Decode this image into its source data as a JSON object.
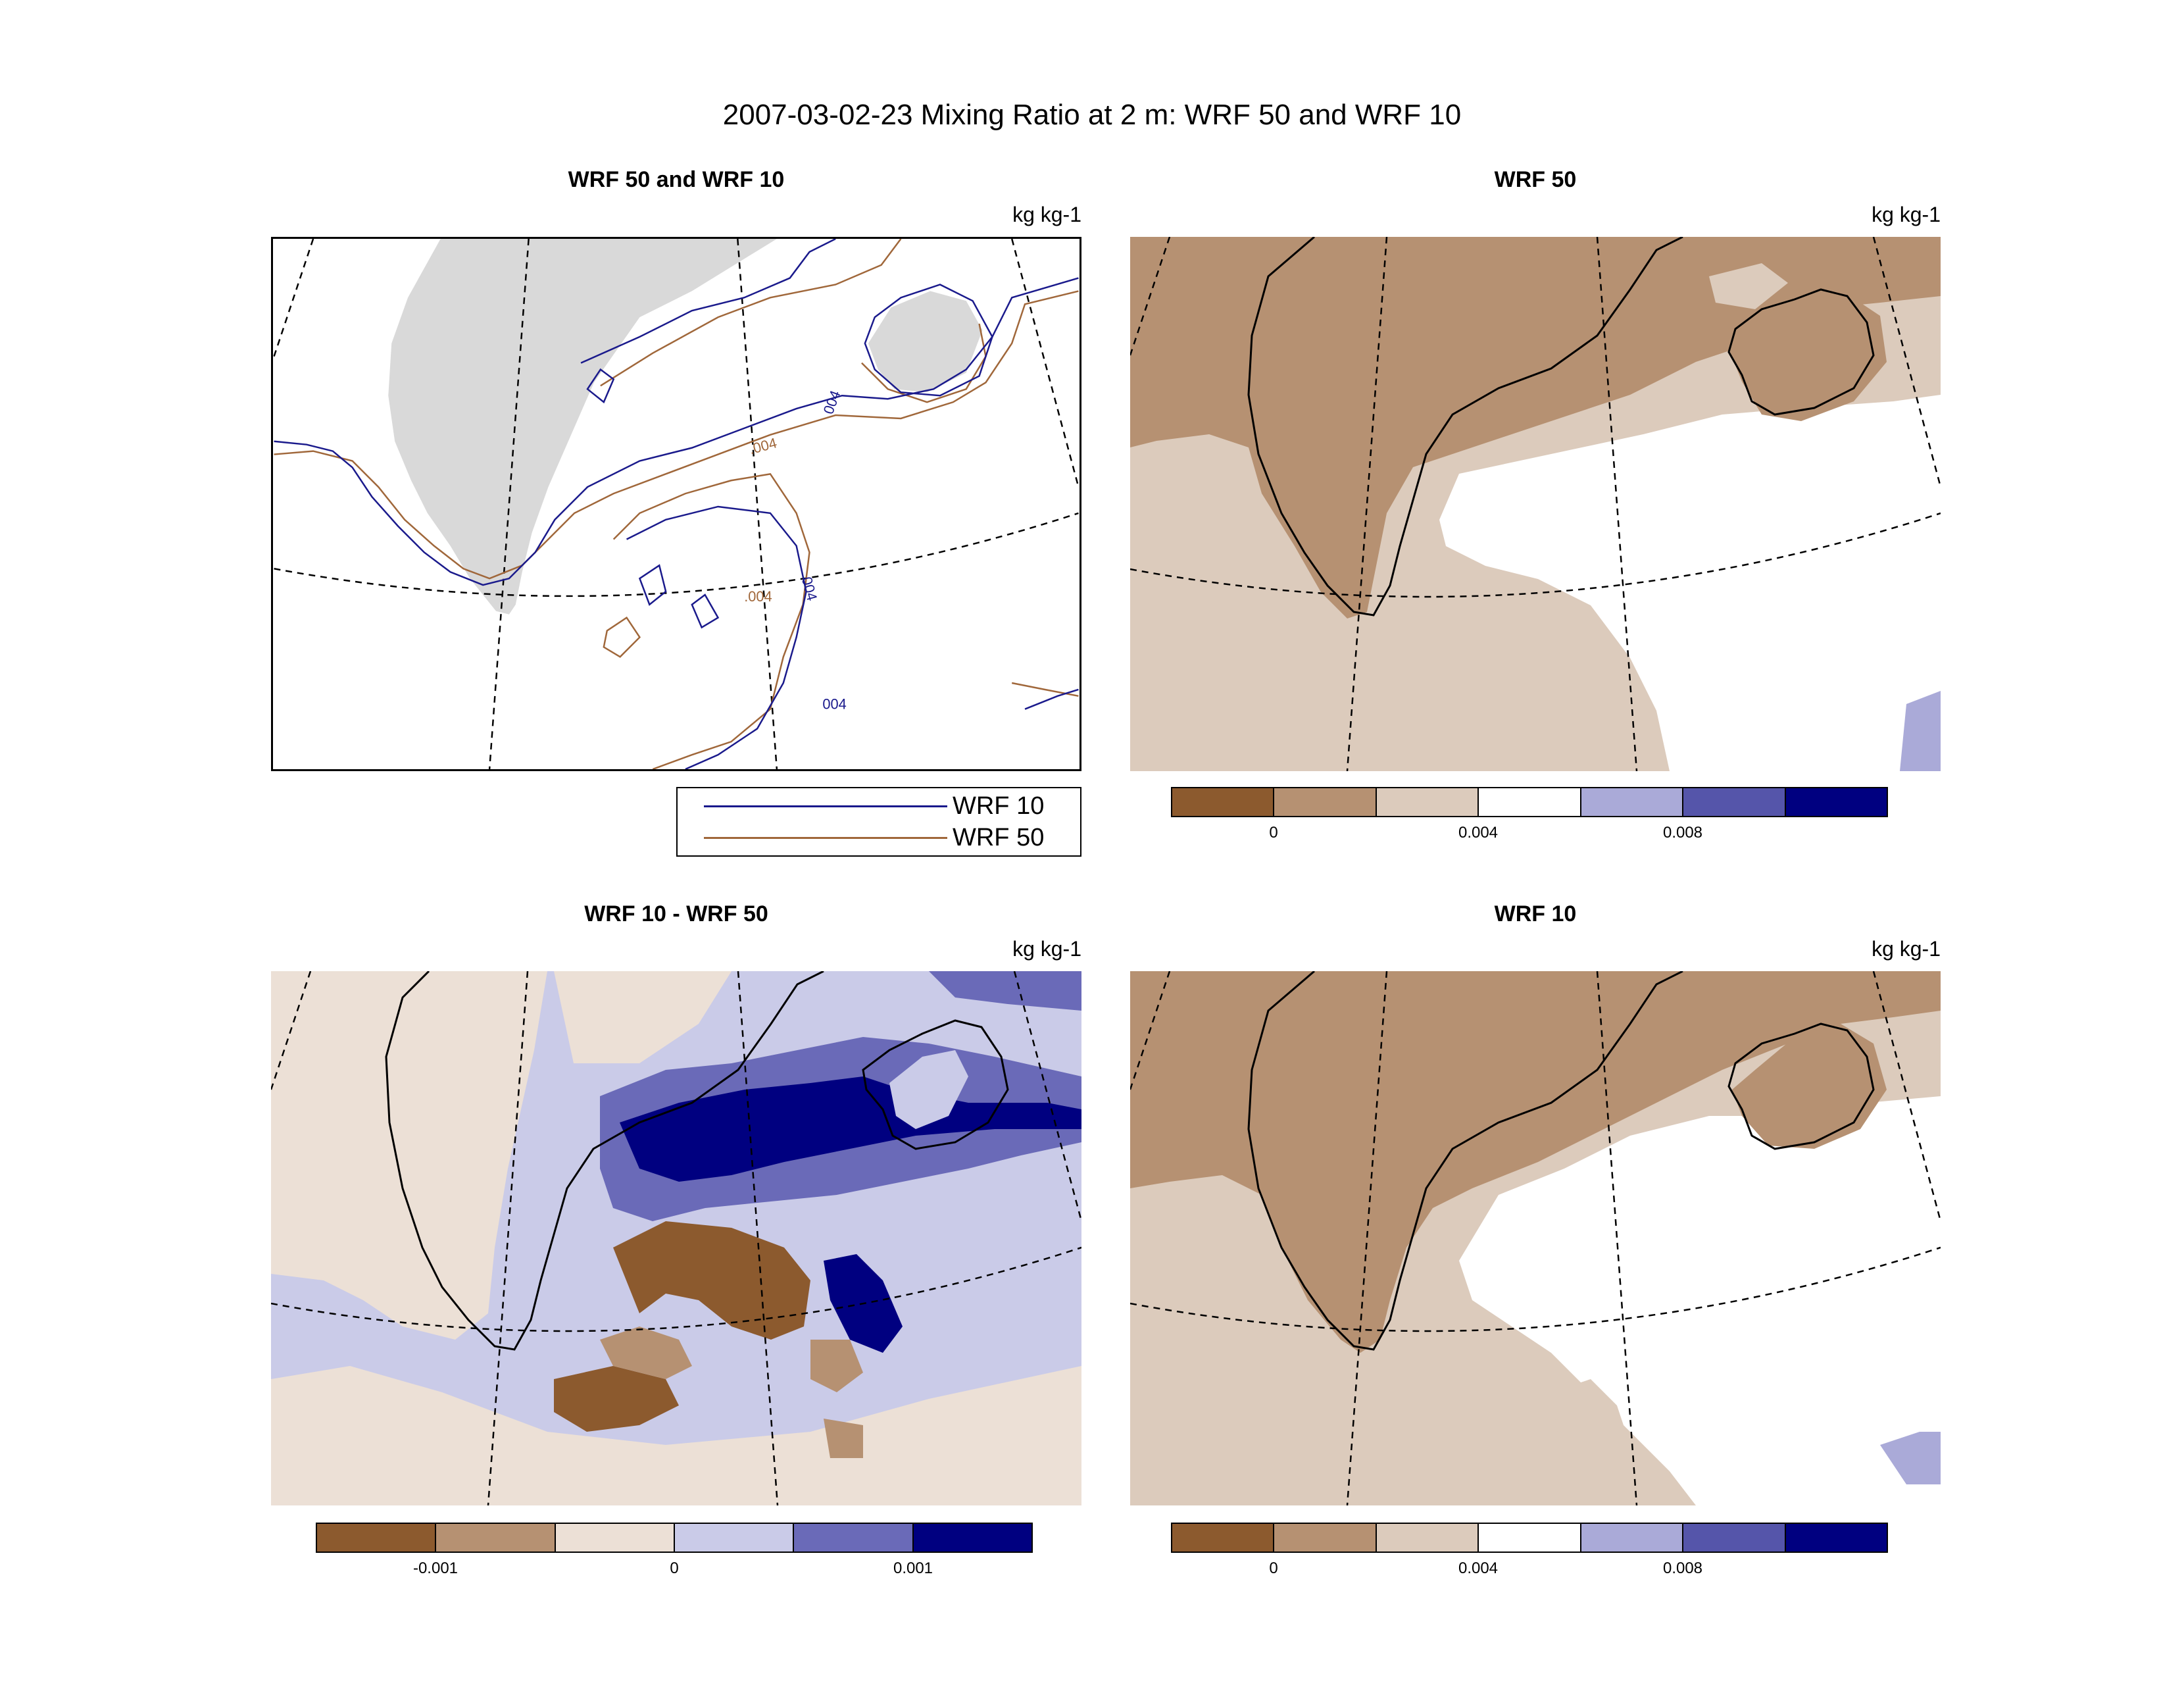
{
  "figure": {
    "title": "2007-03-02-23 Mixing Ratio at 2 m: WRF 50 and WRF 10"
  },
  "colors": {
    "land_grey": "#d9d9d9",
    "wrf10_line": "#1a1a8c",
    "wrf50_line": "#a0673a",
    "coast": "#000000",
    "grid": "#000000"
  },
  "panels": {
    "contours": {
      "title": "WRF 50 and WRF 10",
      "units": "kg kg-1",
      "contour_labels": [
        "004",
        ".004",
        "004",
        "004",
        ".004"
      ],
      "legend": [
        {
          "label": "WRF 10",
          "color": "#1a1a8c"
        },
        {
          "label": "WRF 50",
          "color": "#a0673a"
        }
      ]
    },
    "wrf50": {
      "title": "WRF 50",
      "units": "kg kg-1",
      "colorbar": {
        "colors": [
          "#8c5a2e",
          "#b69172",
          "#dccbbc",
          "#ffffff",
          "#aaaad8",
          "#5555aa",
          "#000080"
        ],
        "tick_labels": [
          "0",
          "0.004",
          "0.008"
        ]
      }
    },
    "difference": {
      "title": "WRF 10 - WRF 50",
      "units": "kg kg-1",
      "colorbar": {
        "colors": [
          "#8c5a2e",
          "#b69172",
          "#ece0d6",
          "#cacbe8",
          "#6a6ab8",
          "#000080"
        ],
        "tick_labels": [
          "-0.001",
          "0",
          "0.001"
        ]
      }
    },
    "wrf10": {
      "title": "WRF 10",
      "units": "kg kg-1",
      "colorbar": {
        "colors": [
          "#8c5a2e",
          "#b69172",
          "#dccbbc",
          "#ffffff",
          "#aaaad8",
          "#5555aa",
          "#000080"
        ],
        "tick_labels": [
          "0",
          "0.004",
          "0.008"
        ]
      }
    }
  }
}
